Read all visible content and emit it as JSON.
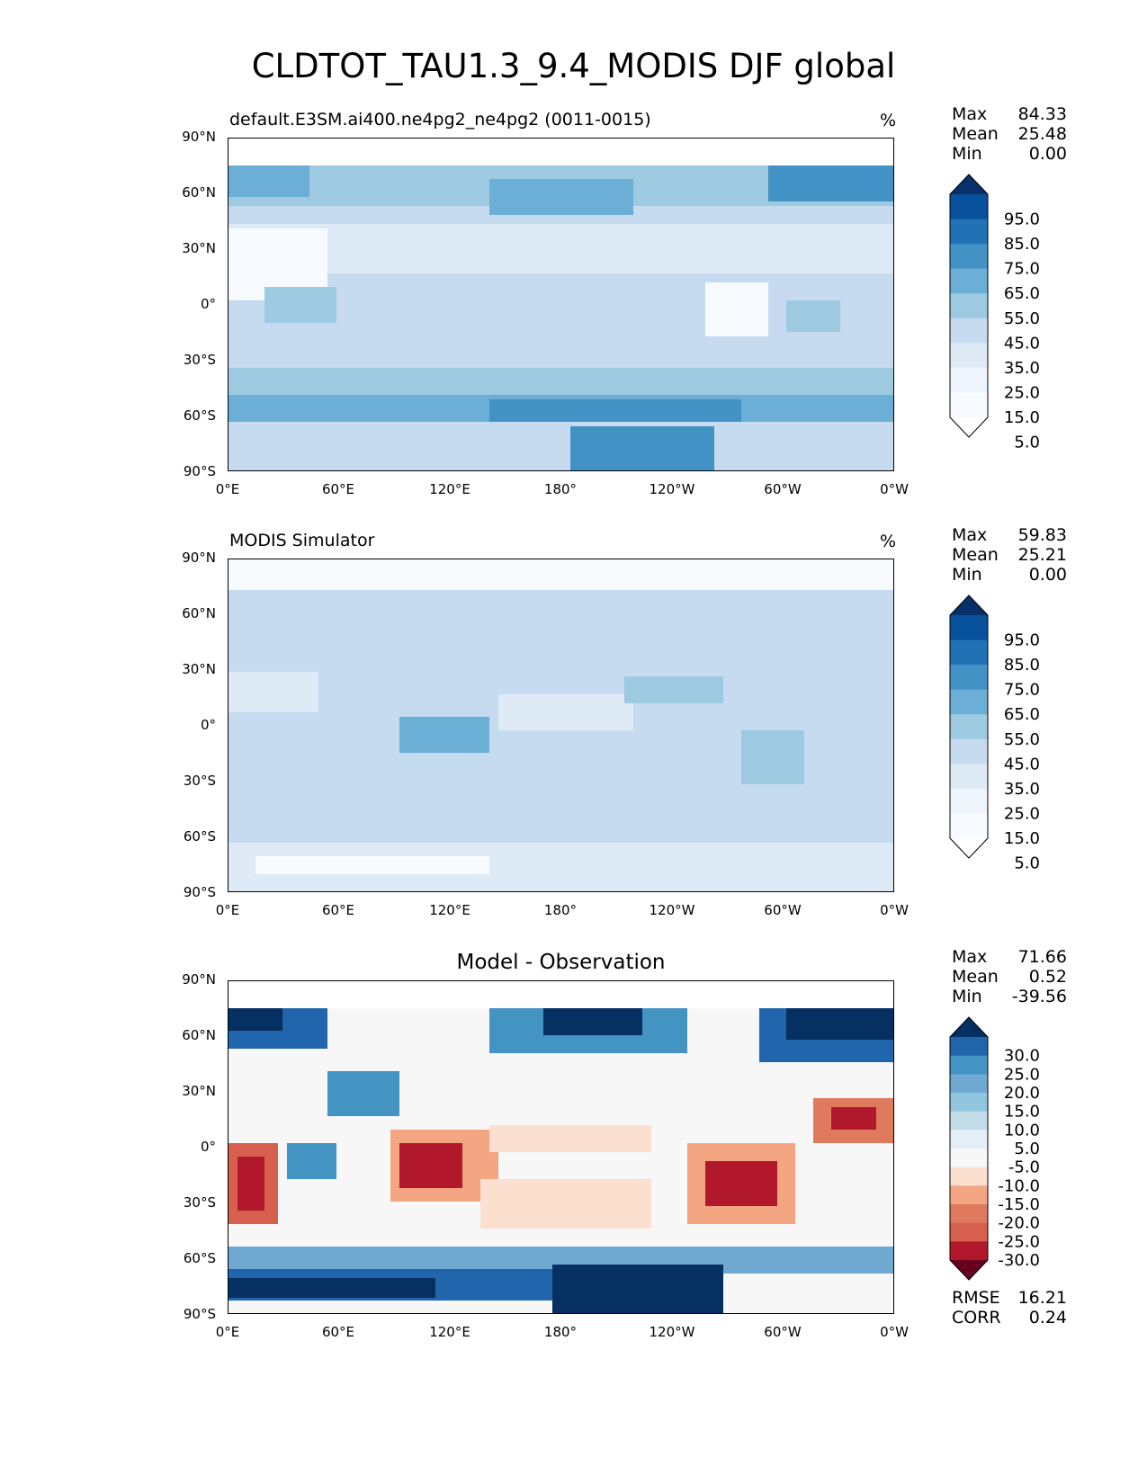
{
  "title": "CLDTOT_TAU1.3_9.4_MODIS DJF global",
  "axes": {
    "yticks": [
      "90°N",
      "60°N",
      "30°N",
      "0°",
      "30°S",
      "60°S",
      "90°S"
    ],
    "xticks": [
      "0°E",
      "60°E",
      "120°E",
      "180°",
      "120°W",
      "60°W",
      "0°W"
    ]
  },
  "panels": [
    {
      "id": "model",
      "title_left": "default.E3SM.ai400.ne4pg2_ne4pg2 (0011-0015)",
      "units": "%",
      "stats": {
        "max_label": "Max",
        "max": "84.33",
        "mean_label": "Mean",
        "mean": "25.48",
        "min_label": "Min",
        "min": "0.00"
      },
      "colorbar": {
        "labels": [
          "95.0",
          "85.0",
          "75.0",
          "65.0",
          "55.0",
          "45.0",
          "35.0",
          "25.0",
          "15.0",
          "5.0"
        ],
        "colors": [
          "#08306b",
          "#08519c",
          "#2171b5",
          "#4292c6",
          "#6baed6",
          "#9ecae1",
          "#c6dbef",
          "#deebf7",
          "#eef5fc",
          "#f7fbff",
          "#ffffff"
        ]
      }
    },
    {
      "id": "obs",
      "title_left": "MODIS Simulator",
      "units": "%",
      "stats": {
        "max_label": "Max",
        "max": "59.83",
        "mean_label": "Mean",
        "mean": "25.21",
        "min_label": "Min",
        "min": "0.00"
      },
      "colorbar": {
        "labels": [
          "95.0",
          "85.0",
          "75.0",
          "65.0",
          "55.0",
          "45.0",
          "35.0",
          "25.0",
          "15.0",
          "5.0"
        ],
        "colors": [
          "#08306b",
          "#08519c",
          "#2171b5",
          "#4292c6",
          "#6baed6",
          "#9ecae1",
          "#c6dbef",
          "#deebf7",
          "#eef5fc",
          "#f7fbff",
          "#ffffff"
        ]
      }
    },
    {
      "id": "diff",
      "title_center": "Model - Observation",
      "stats": {
        "max_label": "Max",
        "max": "71.66",
        "mean_label": "Mean",
        "mean": "0.52",
        "min_label": "Min",
        "min": "-39.56"
      },
      "metrics": {
        "rmse_label": "RMSE",
        "rmse": "16.21",
        "corr_label": "CORR",
        "corr": "0.24"
      },
      "colorbar": {
        "labels": [
          "30.0",
          "25.0",
          "20.0",
          "15.0",
          "10.0",
          "5.0",
          "-5.0",
          "-10.0",
          "-15.0",
          "-20.0",
          "-25.0",
          "-30.0"
        ],
        "colors": [
          "#053061",
          "#2166ac",
          "#4393c3",
          "#6fa9d2",
          "#92c5de",
          "#c3dcea",
          "#e4eef5",
          "#f7f7f7",
          "#fbdfcf",
          "#f4a582",
          "#e07a5f",
          "#d6604d",
          "#b2182b",
          "#67001f"
        ]
      }
    }
  ]
}
